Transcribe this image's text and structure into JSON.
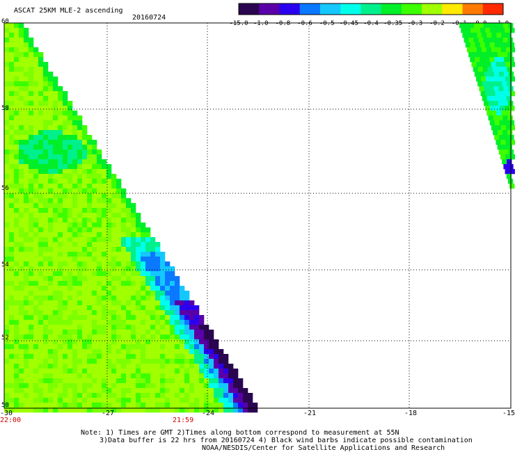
{
  "header": {
    "title": "ASCAT 25KM MLE-2 ascending",
    "date": "20160724"
  },
  "colorbar": {
    "labels": [
      "-15.0",
      "-1.0",
      "-0.8",
      "-0.6",
      "-0.5",
      "-0.45",
      "-0.4",
      "-0.35",
      "-0.3",
      "-0.2",
      "-0.1",
      "0.0",
      "1.0"
    ],
    "colors": [
      "#2a0650",
      "#5a00a8",
      "#2b00f0",
      "#0a78ff",
      "#14c8ff",
      "#00ffea",
      "#00f08c",
      "#00ef28",
      "#3cff00",
      "#a0ff00",
      "#ffea00",
      "#ff7a00",
      "#ff2a00"
    ]
  },
  "map": {
    "lon_labels": [
      "-30",
      "-27",
      "-24",
      "-21",
      "-18",
      "-15"
    ],
    "lat_labels": [
      "60",
      "58",
      "56",
      "54",
      "52",
      "50"
    ],
    "time_labels": [
      "22:00",
      "21:59"
    ]
  },
  "notes": {
    "line1": "Note: 1) Times are GMT 2)Times along bottom correspond to measurement at 55N",
    "line2": "3)Data buffer is 22 hrs from 20160724 4) Black wind barbs indicate possible contamination",
    "line3": "NOAA/NESDIS/Center for Satellite Applications and Research"
  }
}
